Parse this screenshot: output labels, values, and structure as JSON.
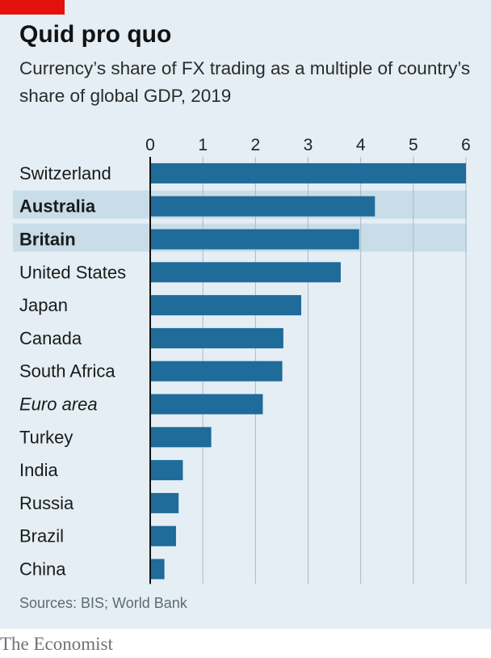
{
  "header": {
    "title": "Quid pro quo",
    "subtitle": "Currency’s share of FX trading as a multiple of country’s share of global GDP, 2019"
  },
  "footer": {
    "source": "Sources: BIS; World Bank",
    "brand": "The Economist"
  },
  "colors": {
    "bar": "#1f6b9a",
    "highlight_band": "#c8dde8",
    "background": "#e4eef4",
    "grid": "#a9b9c3",
    "brand_red": "#e3120b"
  },
  "chart_data": {
    "type": "bar",
    "orientation": "horizontal",
    "xlim": [
      0,
      6
    ],
    "ticks": [
      "0",
      "1",
      "2",
      "3",
      "4",
      "5",
      "6"
    ],
    "grid": true,
    "categories": [
      {
        "label": "Switzerland",
        "value": 6.0,
        "style": "normal"
      },
      {
        "label": "Australia",
        "value": 4.27,
        "style": "bold",
        "highlight": true
      },
      {
        "label": "Britain",
        "value": 3.97,
        "style": "bold",
        "highlight": true
      },
      {
        "label": "United States",
        "value": 3.62,
        "style": "normal"
      },
      {
        "label": "Japan",
        "value": 2.87,
        "style": "normal"
      },
      {
        "label": "Canada",
        "value": 2.53,
        "style": "normal"
      },
      {
        "label": "South Africa",
        "value": 2.51,
        "style": "normal"
      },
      {
        "label": "Euro area",
        "value": 2.14,
        "style": "italic"
      },
      {
        "label": "Turkey",
        "value": 1.16,
        "style": "normal"
      },
      {
        "label": "India",
        "value": 0.62,
        "style": "normal"
      },
      {
        "label": "Russia",
        "value": 0.54,
        "style": "normal"
      },
      {
        "label": "Brazil",
        "value": 0.49,
        "style": "normal"
      },
      {
        "label": "China",
        "value": 0.27,
        "style": "normal"
      }
    ]
  }
}
